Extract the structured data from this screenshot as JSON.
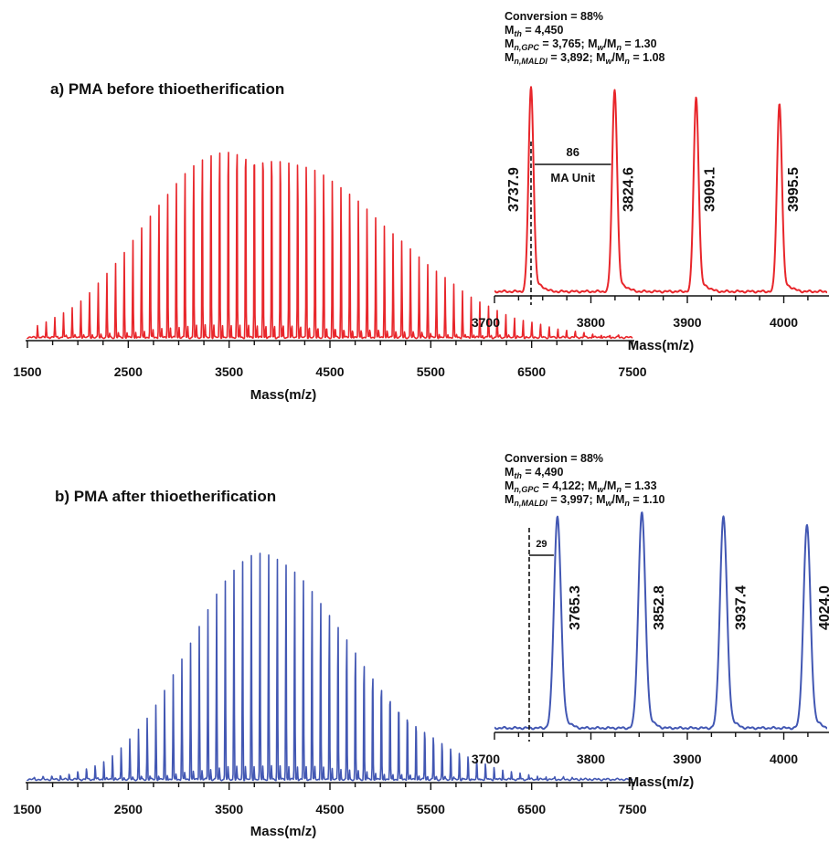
{
  "colors": {
    "a": "#e8262b",
    "b": "#4257b3",
    "axis": "#111111"
  },
  "chart_data": [
    {
      "id": "a-main",
      "type": "line",
      "title": "a) PMA before thioetherification",
      "xlabel": "Mass(m/z)",
      "xlim": [
        1500,
        7500
      ],
      "xticks": [
        1500,
        2500,
        3500,
        4500,
        5500,
        6500,
        7500
      ],
      "tick_labels": [
        "1500",
        "2500",
        "3500",
        "4500",
        "5500",
        "6500",
        "7500"
      ],
      "series_color": "#e8262b",
      "repeat_unit": 86,
      "first_peak": 1600,
      "envelope": {
        "peak_center": 3600,
        "sigma_left": 830,
        "sigma_right": 1250
      }
    },
    {
      "id": "a-inset",
      "type": "line",
      "xlabel": "Mass(m/z)",
      "xlim": [
        3700,
        4045
      ],
      "xticks": [
        3700,
        3800,
        3900,
        4000
      ],
      "tick_labels": [
        "3700",
        "3800",
        "3900",
        "4000"
      ],
      "series_color": "#e8262b",
      "info": [
        "Conversion = 88%",
        "4,450",
        "3,765",
        "1.30",
        "3,892",
        "1.08"
      ],
      "peaks": [
        {
          "x": 3737.9,
          "label": "3737.9",
          "height": 1.0
        },
        {
          "x": 3824.6,
          "label": "3824.6",
          "height": 0.99
        },
        {
          "x": 3909.1,
          "label": "3909.1",
          "height": 0.95
        },
        {
          "x": 3995.5,
          "label": "3995.5",
          "height": 0.92
        }
      ],
      "annotation": {
        "value": "86",
        "text": "MA Unit",
        "x_from": 3737.9,
        "x_to": 3824.6
      },
      "dashed_line_x": 3737.9
    },
    {
      "id": "b-main",
      "type": "line",
      "title": "b) PMA after thioetherification",
      "xlabel": "Mass(m/z)",
      "xlim": [
        1500,
        7500
      ],
      "xticks": [
        1500,
        2500,
        3500,
        4500,
        5500,
        6500,
        7500
      ],
      "tick_labels": [
        "1500",
        "2500",
        "3500",
        "4500",
        "5500",
        "6500",
        "7500"
      ],
      "series_color": "#4257b3",
      "repeat_unit": 86,
      "first_peak": 1570,
      "envelope": {
        "peak_center": 3850,
        "sigma_left": 720,
        "sigma_right": 950
      }
    },
    {
      "id": "b-inset",
      "type": "line",
      "xlabel": "Mass(m/z)",
      "xlim": [
        3700,
        4045
      ],
      "xticks": [
        3700,
        3800,
        3900,
        4000
      ],
      "tick_labels": [
        "3700",
        "3800",
        "3900",
        "4000"
      ],
      "series_color": "#4257b3",
      "info": [
        "Conversion = 88%",
        "4,490",
        "4,122",
        "1.33",
        "3,997",
        "1.10"
      ],
      "peaks": [
        {
          "x": 3765.3,
          "label": "3765.3",
          "height": 0.98
        },
        {
          "x": 3852.8,
          "label": "3852.8",
          "height": 1.0
        },
        {
          "x": 3937.4,
          "label": "3937.4",
          "height": 0.98
        },
        {
          "x": 4024.0,
          "label": "4024.0",
          "height": 0.94
        }
      ],
      "annotation": {
        "value": "29",
        "x_from": 3736,
        "x_to": 3765.3
      },
      "dashed_line_x": 3736
    }
  ]
}
